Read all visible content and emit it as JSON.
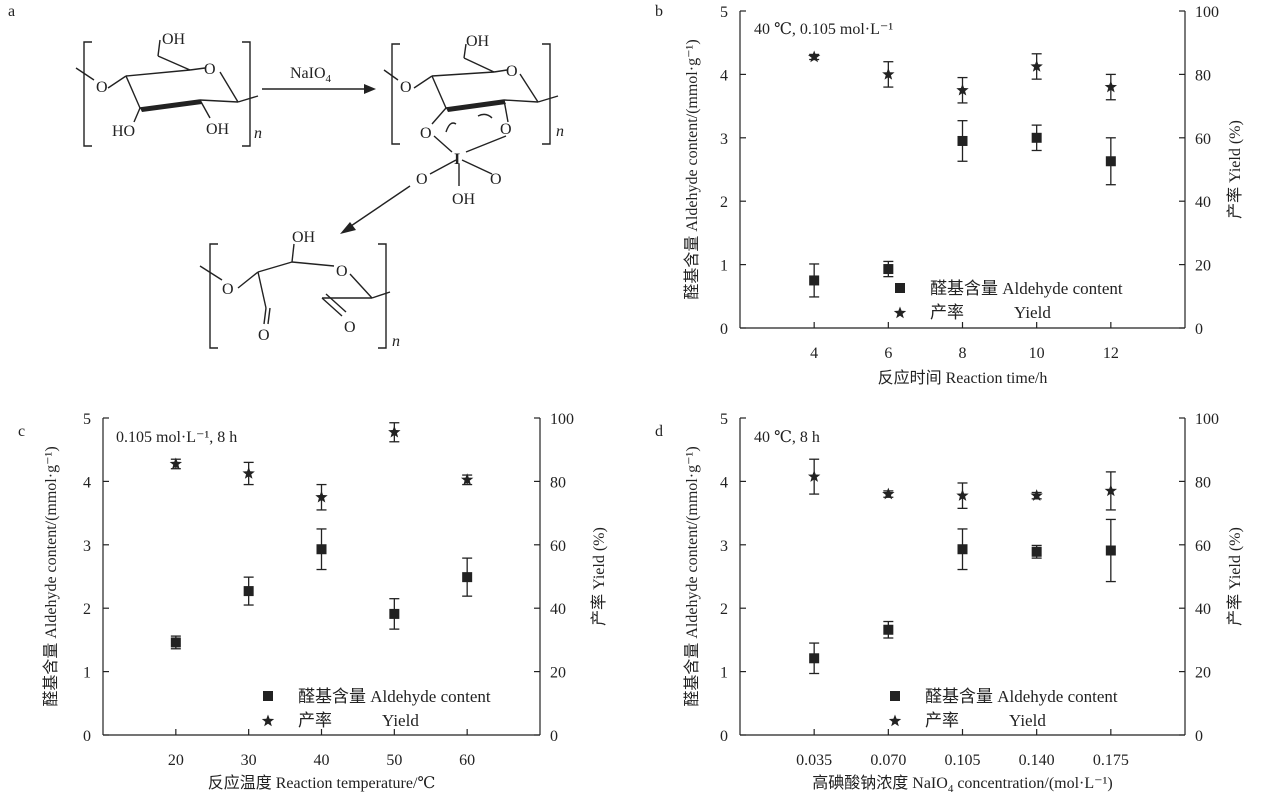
{
  "panel_a": {
    "label": "a",
    "reagent": "NaIO",
    "reagent_sub": "4",
    "oh": "OH",
    "ho": "HO",
    "o": "O",
    "i": "I",
    "n": "n"
  },
  "chart_data": [
    {
      "panel": "b",
      "type": "scatter",
      "annotation": "40 ℃, 0.105 mol·L⁻¹",
      "xlabel": "反应时间 Reaction time/h",
      "ylabel": "醛基含量 Aldehyde content/(mmol·g⁻¹)",
      "y2label": "产率 Yield (%)",
      "ylim": [
        0,
        5
      ],
      "y2lim": [
        0,
        100
      ],
      "xtick_labels": [
        "4",
        "6",
        "8",
        "10",
        "12"
      ],
      "ytick_labels": [
        "0",
        "1",
        "2",
        "3",
        "4",
        "5"
      ],
      "y2tick_labels": [
        "0",
        "20",
        "40",
        "60",
        "80",
        "100"
      ],
      "legend": {
        "position": "bottom-right",
        "aldehyde": "醛基含量 Aldehyde content",
        "yield_cn": "产率",
        "yield_en": "Yield"
      },
      "series": [
        {
          "name": "醛基含量 Aldehyde content",
          "marker": "square",
          "axis": "left",
          "x": [
            4,
            6,
            8,
            10,
            12
          ],
          "values": [
            0.75,
            0.93,
            2.95,
            3.0,
            2.63
          ],
          "errors": [
            0.26,
            0.12,
            0.32,
            0.2,
            0.37
          ]
        },
        {
          "name": "产率 Yield",
          "marker": "star",
          "axis": "right",
          "x": [
            4,
            6,
            8,
            10,
            12
          ],
          "values": [
            85.5,
            80.0,
            75.0,
            82.5,
            76.0
          ],
          "errors": [
            0.8,
            4.0,
            4.0,
            4.0,
            4.0
          ]
        }
      ]
    },
    {
      "panel": "c",
      "type": "scatter",
      "annotation": "0.105 mol·L⁻¹, 8 h",
      "xlabel": "反应温度 Reaction temperature/℃",
      "ylabel": "醛基含量 Aldehyde content/(mmol·g⁻¹)",
      "y2label": "产率 Yield (%)",
      "ylim": [
        0,
        5
      ],
      "y2lim": [
        0,
        100
      ],
      "xtick_labels": [
        "20",
        "30",
        "40",
        "50",
        "60"
      ],
      "ytick_labels": [
        "0",
        "1",
        "2",
        "3",
        "4",
        "5"
      ],
      "y2tick_labels": [
        "0",
        "20",
        "40",
        "60",
        "80",
        "100"
      ],
      "legend": {
        "position": "bottom-right",
        "aldehyde": "醛基含量 Aldehyde content",
        "yield_cn": "产率",
        "yield_en": "Yield"
      },
      "series": [
        {
          "name": "醛基含量 Aldehyde content",
          "marker": "square",
          "axis": "left",
          "x": [
            20,
            30,
            40,
            50,
            60
          ],
          "values": [
            1.46,
            2.27,
            2.93,
            1.91,
            2.49
          ],
          "errors": [
            0.1,
            0.22,
            0.32,
            0.24,
            0.3
          ]
        },
        {
          "name": "产率 Yield",
          "marker": "star",
          "axis": "right",
          "x": [
            20,
            30,
            40,
            50,
            60
          ],
          "values": [
            85.5,
            82.5,
            75.0,
            95.5,
            80.5
          ],
          "errors": [
            1.5,
            3.5,
            4.0,
            3.0,
            1.5
          ]
        }
      ]
    },
    {
      "panel": "d",
      "type": "scatter",
      "annotation": "40 ℃, 8 h",
      "xlabel": "高碘酸钠浓度 NaIO",
      "xlabel_sub": "4",
      "xlabel_tail": " concentration/(mol·L⁻¹)",
      "ylabel": "醛基含量 Aldehyde content/(mmol·g⁻¹)",
      "y2label": "产率 Yield (%)",
      "ylim": [
        0,
        5
      ],
      "y2lim": [
        0,
        100
      ],
      "xtick_labels": [
        "0.035",
        "0.070",
        "0.105",
        "0.140",
        "0.175"
      ],
      "ytick_labels": [
        "0",
        "1",
        "2",
        "3",
        "4",
        "5"
      ],
      "y2tick_labels": [
        "0",
        "20",
        "40",
        "60",
        "80",
        "100"
      ],
      "legend": {
        "position": "bottom-right",
        "aldehyde": "醛基含量 Aldehyde content",
        "yield_cn": "产率",
        "yield_en": "Yield"
      },
      "series": [
        {
          "name": "醛基含量 Aldehyde content",
          "marker": "square",
          "axis": "left",
          "x": [
            0.035,
            0.07,
            0.105,
            0.14,
            0.175
          ],
          "values": [
            1.21,
            1.66,
            2.93,
            2.89,
            2.91
          ],
          "errors": [
            0.24,
            0.13,
            0.32,
            0.1,
            0.49
          ]
        },
        {
          "name": "产率 Yield",
          "marker": "star",
          "axis": "right",
          "x": [
            0.035,
            0.07,
            0.105,
            0.14,
            0.175
          ],
          "values": [
            81.5,
            76.0,
            75.5,
            75.5,
            77.0
          ],
          "errors": [
            5.5,
            1.0,
            4.0,
            1.0,
            6.0
          ]
        }
      ]
    }
  ]
}
